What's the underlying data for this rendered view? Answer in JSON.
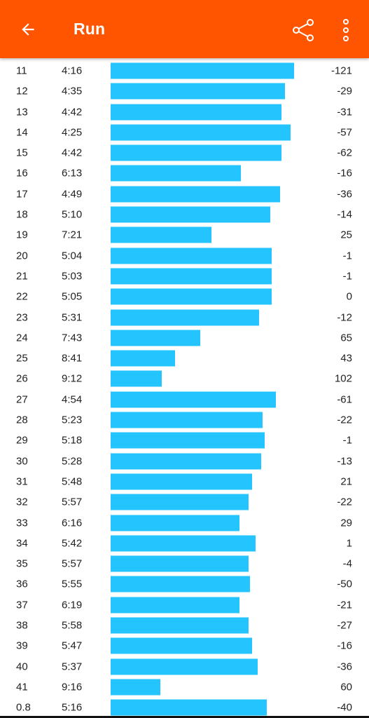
{
  "header": {
    "title": "Run",
    "back_icon": "arrow-left-icon",
    "share_icon": "share-icon",
    "more_icon": "more-vertical-icon",
    "background_color": "#ff5500"
  },
  "bar_color": "#24c4ff",
  "splits": [
    {
      "km": "11",
      "pace": "4:16",
      "elevation": "-121",
      "bar_fraction": 0.873
    },
    {
      "km": "12",
      "pace": "4:35",
      "elevation": "-29",
      "bar_fraction": 0.83
    },
    {
      "km": "13",
      "pace": "4:42",
      "elevation": "-31",
      "bar_fraction": 0.813
    },
    {
      "km": "14",
      "pace": "4:25",
      "elevation": "-57",
      "bar_fraction": 0.857
    },
    {
      "km": "15",
      "pace": "4:42",
      "elevation": "-62",
      "bar_fraction": 0.813
    },
    {
      "km": "16",
      "pace": "6:13",
      "elevation": "-16",
      "bar_fraction": 0.62
    },
    {
      "km": "17",
      "pace": "4:49",
      "elevation": "-36",
      "bar_fraction": 0.807
    },
    {
      "km": "18",
      "pace": "5:10",
      "elevation": "-14",
      "bar_fraction": 0.76
    },
    {
      "km": "19",
      "pace": "7:21",
      "elevation": "25",
      "bar_fraction": 0.48
    },
    {
      "km": "20",
      "pace": "5:04",
      "elevation": "-1",
      "bar_fraction": 0.767
    },
    {
      "km": "21",
      "pace": "5:03",
      "elevation": "-1",
      "bar_fraction": 0.767
    },
    {
      "km": "22",
      "pace": "5:05",
      "elevation": "0",
      "bar_fraction": 0.767
    },
    {
      "km": "23",
      "pace": "5:31",
      "elevation": "-12",
      "bar_fraction": 0.707
    },
    {
      "km": "24",
      "pace": "7:43",
      "elevation": "65",
      "bar_fraction": 0.427
    },
    {
      "km": "25",
      "pace": "8:41",
      "elevation": "43",
      "bar_fraction": 0.307
    },
    {
      "km": "26",
      "pace": "9:12",
      "elevation": "102",
      "bar_fraction": 0.243
    },
    {
      "km": "27",
      "pace": "4:54",
      "elevation": "-61",
      "bar_fraction": 0.787
    },
    {
      "km": "28",
      "pace": "5:23",
      "elevation": "-22",
      "bar_fraction": 0.723
    },
    {
      "km": "29",
      "pace": "5:18",
      "elevation": "-1",
      "bar_fraction": 0.733
    },
    {
      "km": "30",
      "pace": "5:28",
      "elevation": "-13",
      "bar_fraction": 0.717
    },
    {
      "km": "31",
      "pace": "5:48",
      "elevation": "21",
      "bar_fraction": 0.673
    },
    {
      "km": "32",
      "pace": "5:57",
      "elevation": "-22",
      "bar_fraction": 0.657
    },
    {
      "km": "33",
      "pace": "6:16",
      "elevation": "29",
      "bar_fraction": 0.613
    },
    {
      "km": "34",
      "pace": "5:42",
      "elevation": "1",
      "bar_fraction": 0.69
    },
    {
      "km": "35",
      "pace": "5:57",
      "elevation": "-4",
      "bar_fraction": 0.657
    },
    {
      "km": "36",
      "pace": "5:55",
      "elevation": "-50",
      "bar_fraction": 0.663
    },
    {
      "km": "37",
      "pace": "6:19",
      "elevation": "-21",
      "bar_fraction": 0.613
    },
    {
      "km": "38",
      "pace": "5:58",
      "elevation": "-27",
      "bar_fraction": 0.657
    },
    {
      "km": "39",
      "pace": "5:47",
      "elevation": "-16",
      "bar_fraction": 0.673
    },
    {
      "km": "40",
      "pace": "5:37",
      "elevation": "-36",
      "bar_fraction": 0.7
    },
    {
      "km": "41",
      "pace": "9:16",
      "elevation": "60",
      "bar_fraction": 0.237
    },
    {
      "km": "0.8",
      "pace": "5:16",
      "elevation": "-40",
      "bar_fraction": 0.743
    }
  ]
}
